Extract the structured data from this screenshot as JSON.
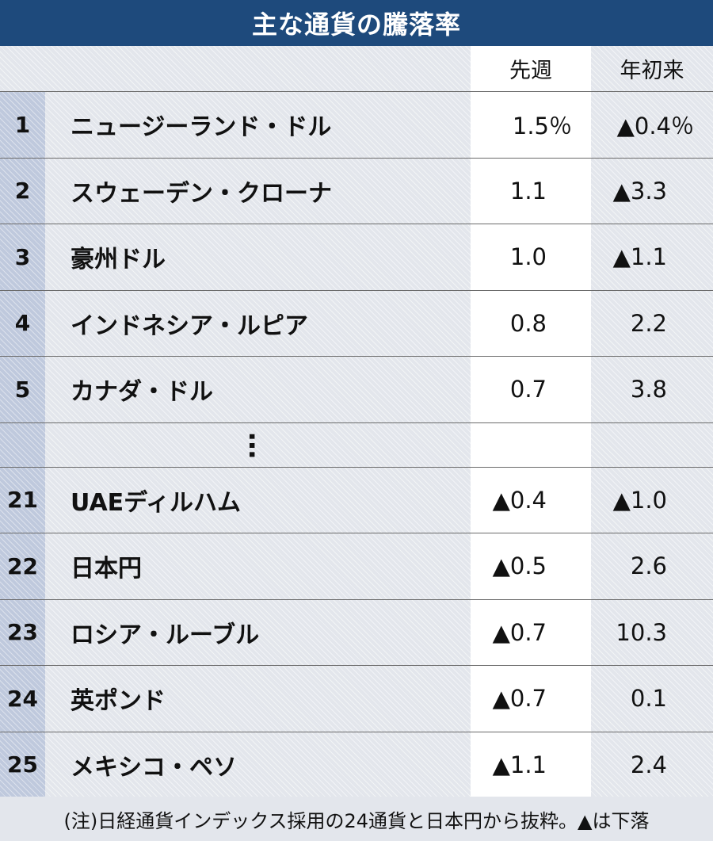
{
  "title": "主な通貨の騰落率",
  "columns": {
    "week": "先週",
    "ytd": "年初来"
  },
  "ellipsis": "…",
  "note": "(注)日経通貨インデックス採用の24通貨と日本円から抜粋。▲は下落",
  "colors": {
    "title_bg": "#1e4a7c",
    "title_text": "#ffffff",
    "rank_bg": "#bfc9dd",
    "row_bg": "#e3e6ec",
    "week_bg": "#ffffff"
  },
  "chart_data": {
    "type": "table",
    "title": "主な通貨の騰落率",
    "columns": [
      "",
      "",
      "先週",
      "年初来"
    ],
    "rows": [
      {
        "rank": "1",
        "name": "ニュージーランド・ドル",
        "week": "1.5％",
        "ytd": "▲0.4％"
      },
      {
        "rank": "2",
        "name": "スウェーデン・クローナ",
        "week": "1.1",
        "ytd": "▲3.3"
      },
      {
        "rank": "3",
        "name": "豪州ドル",
        "week": "1.0",
        "ytd": "▲1.1"
      },
      {
        "rank": "4",
        "name": "インドネシア・ルピア",
        "week": "0.8",
        "ytd": "2.2"
      },
      {
        "rank": "5",
        "name": "カナダ・ドル",
        "week": "0.7",
        "ytd": "3.8"
      },
      {
        "rank": "21",
        "name": "UAEディルハム",
        "week": "▲0.4",
        "ytd": "▲1.0"
      },
      {
        "rank": "22",
        "name": "日本円",
        "week": "▲0.5",
        "ytd": "2.6"
      },
      {
        "rank": "23",
        "name": "ロシア・ルーブル",
        "week": "▲0.7",
        "ytd": "10.3"
      },
      {
        "rank": "24",
        "name": "英ポンド",
        "week": "▲0.7",
        "ytd": "0.1"
      },
      {
        "rank": "25",
        "name": "メキシコ・ペソ",
        "week": "▲1.1",
        "ytd": "2.4"
      }
    ],
    "values_week": [
      1.5,
      1.1,
      1.0,
      0.8,
      0.7,
      -0.4,
      -0.5,
      -0.7,
      -0.7,
      -1.1
    ],
    "values_ytd": [
      -0.4,
      -3.3,
      -1.1,
      2.2,
      3.8,
      -1.0,
      2.6,
      10.3,
      0.1,
      2.4
    ],
    "unit": "％",
    "note": "(注)日経通貨インデックス採用の24通貨と日本円から抜粋。▲は下落"
  }
}
